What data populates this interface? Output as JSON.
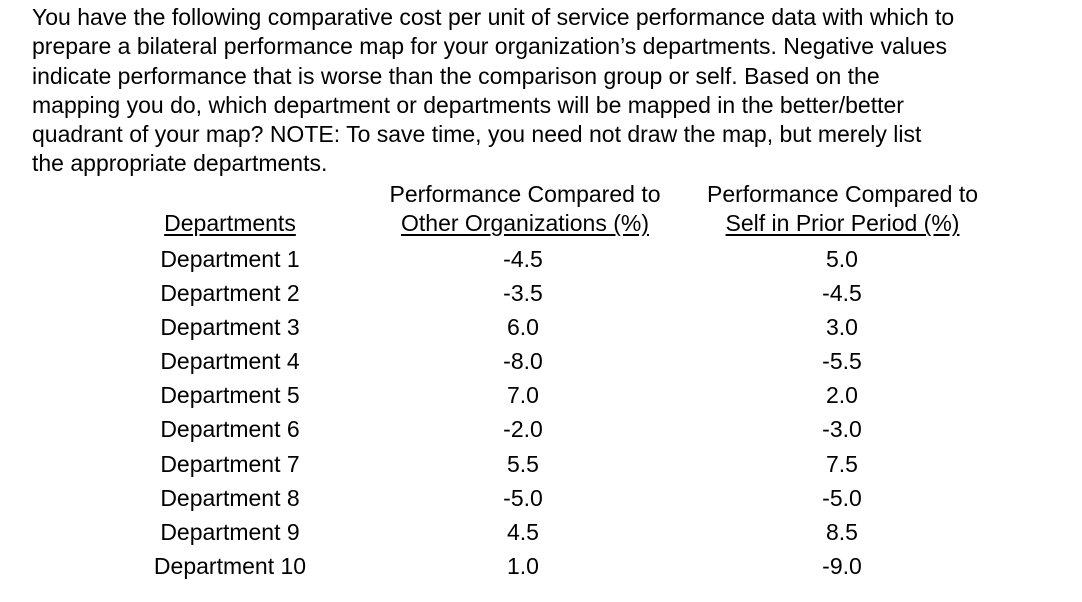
{
  "question": "You have the following comparative cost per unit of service performance data with which to\nprepare a bilateral performance map for your organization’s departments.  Negative values\nindicate performance that is worse than the comparison group or self.   Based on the\nmapping you do, which department or departments will be mapped in the better/better\nquadrant of your map?  NOTE:  To save time, you need not draw the map, but merely list\nthe appropriate departments.",
  "table": {
    "headers": {
      "departments": "Departments",
      "other_line1": "Performance Compared to",
      "other_line2": "Other Organizations (%)",
      "self_line1": "Performance Compared to",
      "self_line2": "Self in Prior Period (%)"
    },
    "rows": [
      {
        "department": "Department 1",
        "other": "-4.5",
        "self": "5.0"
      },
      {
        "department": "Department 2",
        "other": "-3.5",
        "self": "-4.5"
      },
      {
        "department": "Department 3",
        "other": "6.0",
        "self": "3.0"
      },
      {
        "department": "Department 4",
        "other": "-8.0",
        "self": "-5.5"
      },
      {
        "department": "Department 5",
        "other": "7.0",
        "self": "2.0"
      },
      {
        "department": "Department 6",
        "other": "-2.0",
        "self": "-3.0"
      },
      {
        "department": "Department 7",
        "other": "5.5",
        "self": "7.5"
      },
      {
        "department": "Department 8",
        "other": "-5.0",
        "self": "-5.0"
      },
      {
        "department": "Department 9",
        "other": "4.5",
        "self": "8.5"
      },
      {
        "department": "Department 10",
        "other": "1.0",
        "self": "-9.0"
      }
    ]
  }
}
